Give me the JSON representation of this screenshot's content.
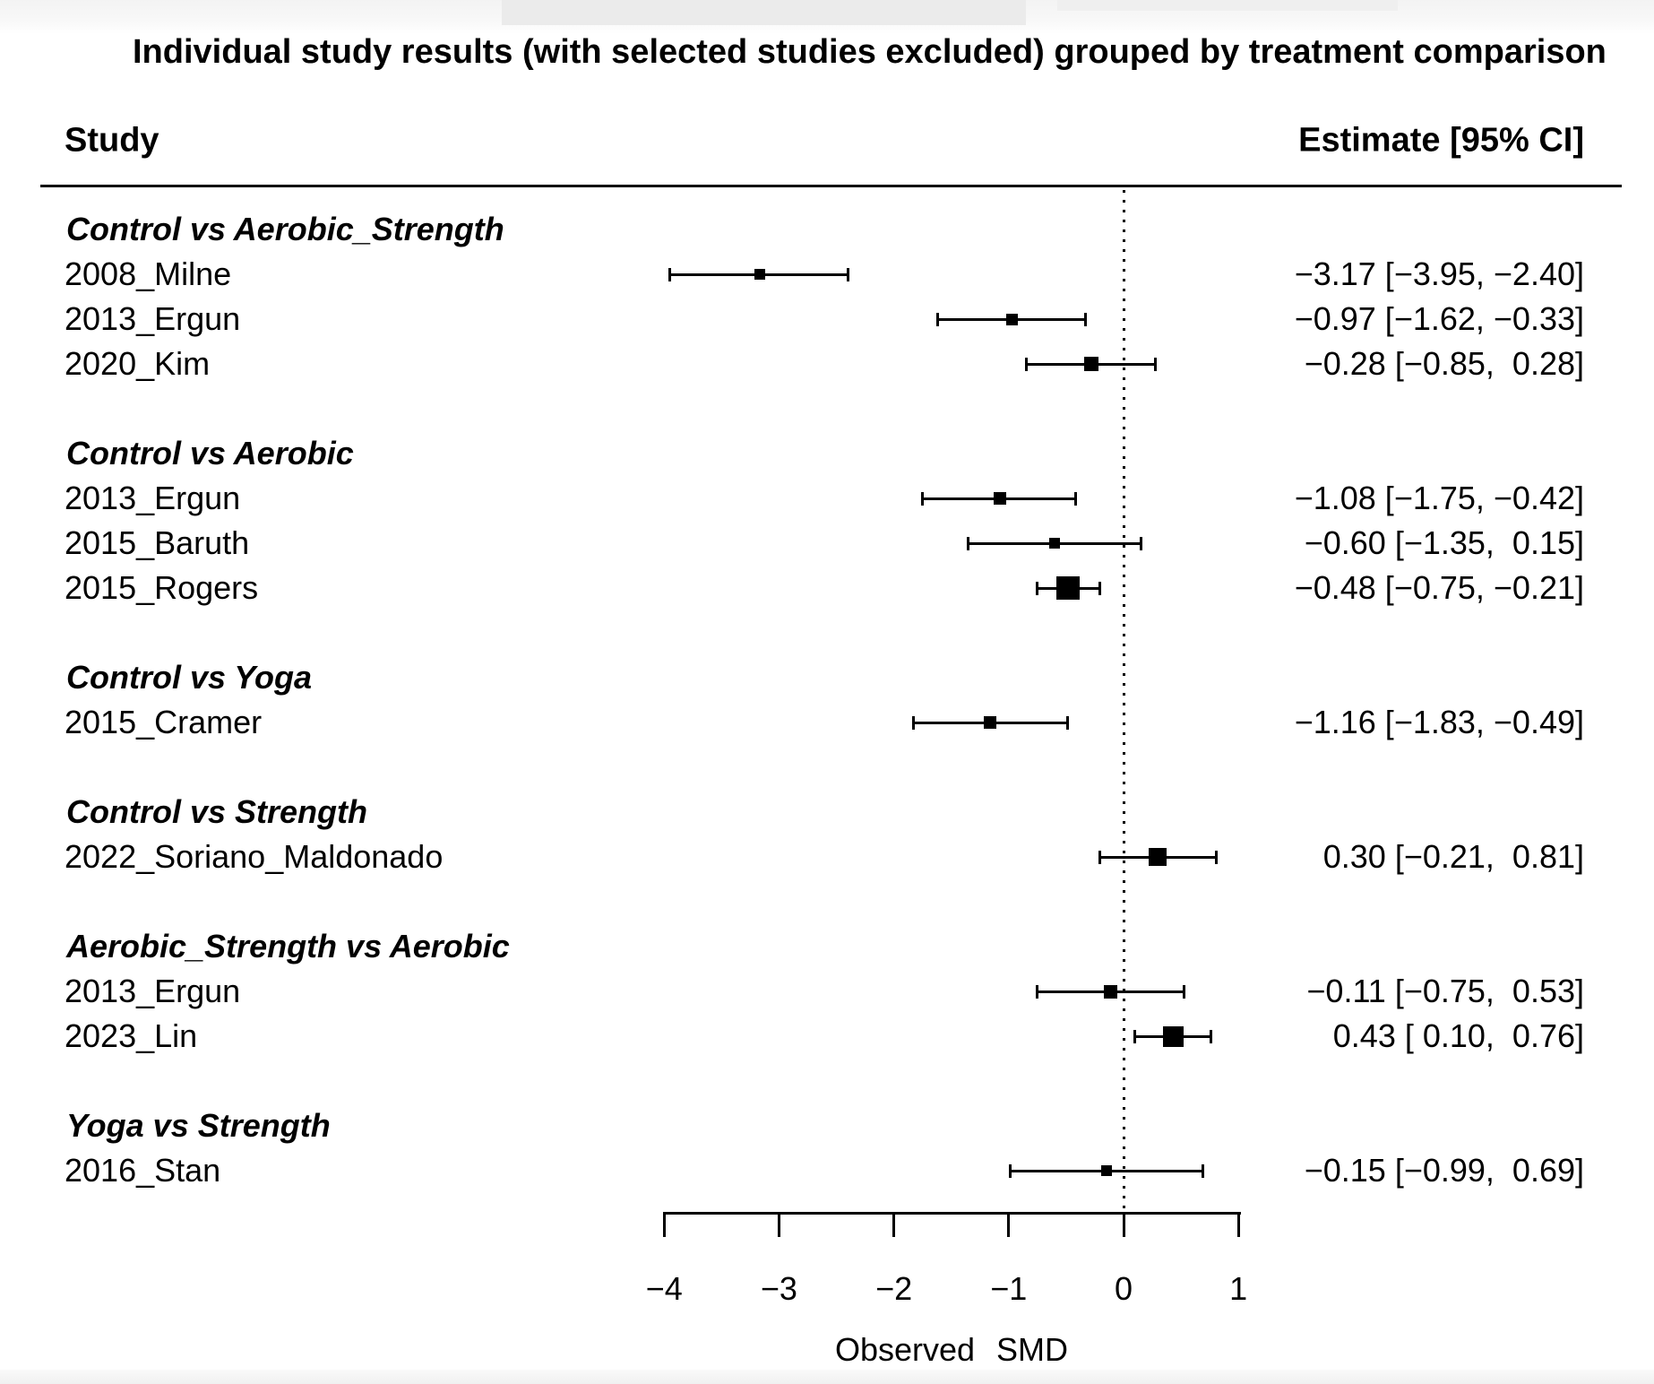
{
  "title": "Individual study results (with selected studies excluded) grouped by treatment comparison",
  "columns": {
    "study": "Study",
    "estimate": "Estimate [95% CI]"
  },
  "xlabel": "Observed SMD",
  "chart_data": {
    "type": "forest",
    "xlabel": "Observed SMD",
    "xlim": [
      -4,
      1
    ],
    "zero_reference_line": 0,
    "axis": {
      "ticks": [
        -4,
        -3,
        -2,
        -1,
        0,
        1
      ],
      "tick_labels": [
        "−4",
        "−3",
        "−2",
        "−1",
        "0",
        "1"
      ]
    },
    "groups": [
      {
        "label": "Control vs Aerobic_Strength",
        "studies": [
          {
            "label": "2008_Milne",
            "estimate": -3.17,
            "ci_low": -3.95,
            "ci_high": -2.4,
            "estimate_label": "−3.17 [−3.95, −2.40]",
            "marker_size": 12
          },
          {
            "label": "2013_Ergun",
            "estimate": -0.97,
            "ci_low": -1.62,
            "ci_high": -0.33,
            "estimate_label": "−0.97 [−1.62, −0.33]",
            "marker_size": 13
          },
          {
            "label": "2020_Kim",
            "estimate": -0.28,
            "ci_low": -0.85,
            "ci_high": 0.28,
            "estimate_label": "−0.28 [−0.85,  0.28]",
            "marker_size": 16
          }
        ]
      },
      {
        "label": "Control vs Aerobic",
        "studies": [
          {
            "label": "2013_Ergun",
            "estimate": -1.08,
            "ci_low": -1.75,
            "ci_high": -0.42,
            "estimate_label": "−1.08 [−1.75, −0.42]",
            "marker_size": 14
          },
          {
            "label": "2015_Baruth",
            "estimate": -0.6,
            "ci_low": -1.35,
            "ci_high": 0.15,
            "estimate_label": "−0.60 [−1.35,  0.15]",
            "marker_size": 12
          },
          {
            "label": "2015_Rogers",
            "estimate": -0.48,
            "ci_low": -0.75,
            "ci_high": -0.21,
            "estimate_label": "−0.48 [−0.75, −0.21]",
            "marker_size": 26
          }
        ]
      },
      {
        "label": "Control vs Yoga",
        "studies": [
          {
            "label": "2015_Cramer",
            "estimate": -1.16,
            "ci_low": -1.83,
            "ci_high": -0.49,
            "estimate_label": "−1.16 [−1.83, −0.49]",
            "marker_size": 14
          }
        ]
      },
      {
        "label": "Control vs Strength",
        "studies": [
          {
            "label": "2022_Soriano_Maldonado",
            "estimate": 0.3,
            "ci_low": -0.21,
            "ci_high": 0.81,
            "estimate_label": "0.30 [−0.21,  0.81]",
            "marker_size": 20
          }
        ]
      },
      {
        "label": "Aerobic_Strength vs Aerobic",
        "studies": [
          {
            "label": "2013_Ergun",
            "estimate": -0.11,
            "ci_low": -0.75,
            "ci_high": 0.53,
            "estimate_label": "−0.11 [−0.75,  0.53]",
            "marker_size": 15
          },
          {
            "label": "2023_Lin",
            "estimate": 0.43,
            "ci_low": 0.1,
            "ci_high": 0.76,
            "estimate_label": "0.43 [ 0.10,  0.76]",
            "marker_size": 23
          }
        ]
      },
      {
        "label": "Yoga vs Strength",
        "studies": [
          {
            "label": "2016_Stan",
            "estimate": -0.15,
            "ci_low": -0.99,
            "ci_high": 0.69,
            "estimate_label": "−0.15 [−0.99,  0.69]",
            "marker_size": 12
          }
        ]
      }
    ]
  }
}
